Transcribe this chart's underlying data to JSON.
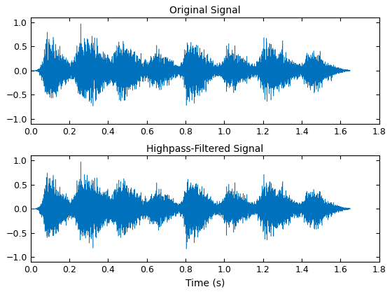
{
  "title1": "Original Signal",
  "title2": "Highpass-Filtered Signal",
  "xlabel": "Time (s)",
  "xlim": [
    0,
    1.8
  ],
  "ylim": [
    -1.1,
    1.1
  ],
  "xticks": [
    0,
    0.2,
    0.4,
    0.6,
    0.8,
    1.0,
    1.2,
    1.4,
    1.6,
    1.8
  ],
  "yticks": [
    -1,
    -0.5,
    0,
    0.5,
    1
  ],
  "line_color": "#0072BD",
  "line_width": 0.4,
  "background_color": "#FFFFFF",
  "sample_rate": 8000,
  "duration": 1.65,
  "seed": 42,
  "burst_centers": [
    0.09,
    0.27,
    0.46,
    0.64,
    0.82,
    1.02,
    1.22,
    1.44
  ],
  "burst_half_widths": [
    0.07,
    0.1,
    0.09,
    0.08,
    0.08,
    0.09,
    0.1,
    0.08
  ],
  "burst_amplitudes": [
    0.85,
    0.95,
    0.72,
    0.5,
    0.82,
    0.52,
    0.75,
    0.52
  ],
  "title_fontsize": 10,
  "tick_fontsize": 9,
  "xlabel_fontsize": 10
}
